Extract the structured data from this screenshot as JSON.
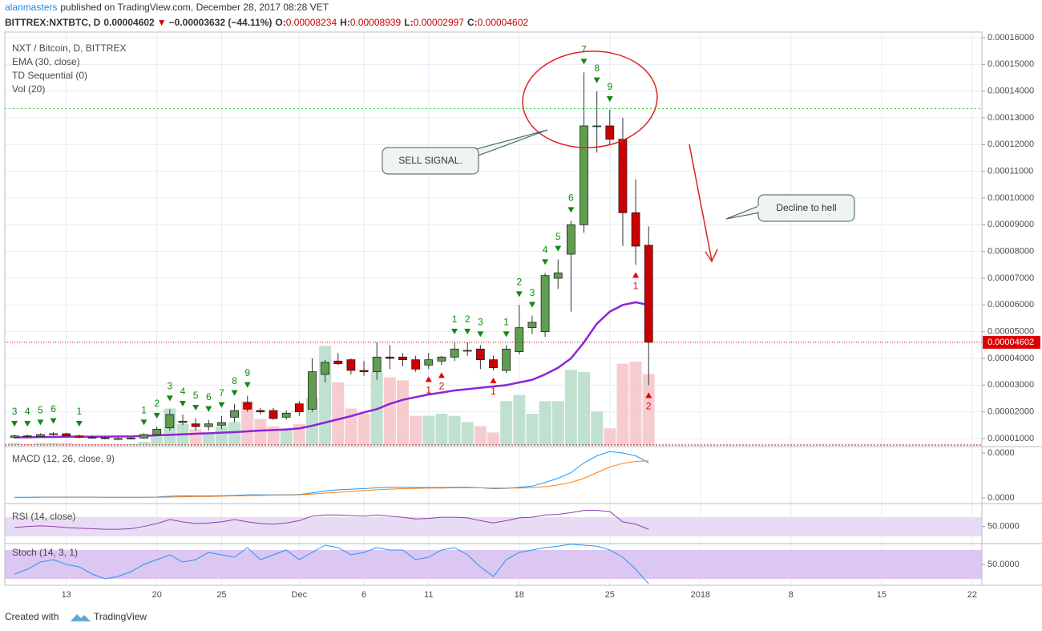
{
  "header": {
    "author": "alanmasters",
    "published": "published on TradingView.com, December 28, 2017 08:28 VET"
  },
  "quote": {
    "symbol": "BITTREX:NXTBTC, D",
    "price": "0.00004602",
    "arrow": "▼",
    "change": "−0.00003632 (−44.11%)",
    "o_label": "O:",
    "o": "0.00008234",
    "h_label": "H:",
    "h": "0.00008939",
    "l_label": "L:",
    "l": "0.00002997",
    "c_label": "C:",
    "c": "0.00004602"
  },
  "legend": [
    "NXT / Bitcoin, D, BITTREX",
    "EMA (30, close)",
    "TD Sequential (0)",
    "Vol (20)"
  ],
  "annotations": {
    "sell": "SELL SIGNAL.",
    "decline": "Decline to hell"
  },
  "footer": {
    "created": "Created with",
    "brand": "TradingView"
  },
  "chart_data": {
    "type": "candlestick",
    "xlim": [
      -0.75,
      74.75
    ],
    "xticks": [
      {
        "value": 4,
        "label": "13"
      },
      {
        "value": 11,
        "label": "20"
      },
      {
        "value": 16,
        "label": "25"
      },
      {
        "value": 22,
        "label": "Dec"
      },
      {
        "value": 27,
        "label": "6"
      },
      {
        "value": 32,
        "label": "11"
      },
      {
        "value": 39,
        "label": "18"
      },
      {
        "value": 46,
        "label": "25"
      },
      {
        "value": 53,
        "label": "2018"
      },
      {
        "value": 60,
        "label": "8"
      },
      {
        "value": 67,
        "label": "15"
      },
      {
        "value": 74,
        "label": "22"
      }
    ],
    "ylim": [
      7e-06,
      0.0001621
    ],
    "yticks": [
      {
        "value": 1e-05,
        "label": "0.00001000"
      },
      {
        "value": 2e-05,
        "label": "0.00002000"
      },
      {
        "value": 3e-05,
        "label": "0.00003000"
      },
      {
        "value": 4e-05,
        "label": "0.00004000"
      },
      {
        "value": 5e-05,
        "label": "0.00005000"
      },
      {
        "value": 6e-05,
        "label": "0.00006000"
      },
      {
        "value": 7e-05,
        "label": "0.00007000"
      },
      {
        "value": 8e-05,
        "label": "0.00008000"
      },
      {
        "value": 9e-05,
        "label": "0.00009000"
      },
      {
        "value": 0.0001,
        "label": "0.00010000"
      },
      {
        "value": 0.00011,
        "label": "0.00011000"
      },
      {
        "value": 0.00012,
        "label": "0.00012000"
      },
      {
        "value": 0.00013,
        "label": "0.00013000"
      },
      {
        "value": 0.00014,
        "label": "0.00014000"
      },
      {
        "value": 0.00015,
        "label": "0.00015000"
      },
      {
        "value": 0.00016,
        "label": "0.00016000"
      }
    ],
    "grid": true,
    "up_color": "#5f9e4e",
    "down_color": "#cc0000",
    "ohlc": [
      [
        1.05e-05,
        1.15e-05,
        1e-05,
        1.1e-05
      ],
      [
        1.1e-05,
        1.15e-05,
        1.05e-05,
        1.08e-05
      ],
      [
        1.08e-05,
        1.2e-05,
        1.05e-05,
        1.15e-05
      ],
      [
        1.15e-05,
        1.25e-05,
        1.1e-05,
        1.18e-05
      ],
      [
        1.18e-05,
        1.22e-05,
        1.08e-05,
        1.1e-05
      ],
      [
        1.1e-05,
        1.15e-05,
        1.02e-05,
        1.05e-05
      ],
      [
        1.05e-05,
        1.12e-05,
        1e-05,
        1.03e-05
      ],
      [
        1.03e-05,
        1.08e-05,
        9.7e-06,
        1e-05
      ],
      [
        1e-05,
        1.05e-05,
        9.6e-06,
        9.9e-06
      ],
      [
        9.9e-06,
        1.05e-05,
        9.6e-06,
        1.02e-05
      ],
      [
        1.02e-05,
        1.2e-05,
        1e-05,
        1.15e-05
      ],
      [
        1.15e-05,
        1.45e-05,
        1.1e-05,
        1.35e-05
      ],
      [
        1.4e-05,
        2.1e-05,
        1.3e-05,
        1.9e-05
      ],
      [
        1.6e-05,
        1.9e-05,
        1.5e-05,
        1.65e-05
      ],
      [
        1.55e-05,
        1.75e-05,
        1.3e-05,
        1.45e-05
      ],
      [
        1.45e-05,
        1.7e-05,
        1.3e-05,
        1.55e-05
      ],
      [
        1.5e-05,
        1.85e-05,
        1.35e-05,
        1.6e-05
      ],
      [
        1.8e-05,
        2.3e-05,
        1.6e-05,
        2.05e-05
      ],
      [
        2.35e-05,
        2.6e-05,
        2e-05,
        2.1e-05
      ],
      [
        2.05e-05,
        2.15e-05,
        1.9e-05,
        2e-05
      ],
      [
        2.05e-05,
        2.15e-05,
        1.7e-05,
        1.75e-05
      ],
      [
        1.8e-05,
        2.05e-05,
        1.7e-05,
        1.95e-05
      ],
      [
        2.3e-05,
        2.4e-05,
        1.85e-05,
        2e-05
      ],
      [
        2.1e-05,
        4e-05,
        2e-05,
        3.5e-05
      ],
      [
        3.4e-05,
        3.95e-05,
        3.1e-05,
        3.85e-05
      ],
      [
        3.9e-05,
        4.2e-05,
        3.75e-05,
        3.8e-05
      ],
      [
        3.95e-05,
        4e-05,
        3.4e-05,
        3.55e-05
      ],
      [
        3.55e-05,
        3.9e-05,
        3.35e-05,
        3.5e-05
      ],
      [
        3.5e-05,
        4.6e-05,
        3.2e-05,
        4.05e-05
      ],
      [
        4.05e-05,
        4.5e-05,
        3.6e-05,
        4e-05
      ],
      [
        4.05e-05,
        4.2e-05,
        3.7e-05,
        3.95e-05
      ],
      [
        3.95e-05,
        4.1e-05,
        3.5e-05,
        3.6e-05
      ],
      [
        3.75e-05,
        4.2e-05,
        3.6e-05,
        3.95e-05
      ],
      [
        3.9e-05,
        4.1e-05,
        3.75e-05,
        4.05e-05
      ],
      [
        4.05e-05,
        4.6e-05,
        3.9e-05,
        4.35e-05
      ],
      [
        4.3e-05,
        4.6e-05,
        4.1e-05,
        4.3e-05
      ],
      [
        4.35e-05,
        4.5e-05,
        3.6e-05,
        3.95e-05
      ],
      [
        3.95e-05,
        4.1e-05,
        3.55e-05,
        3.65e-05
      ],
      [
        3.55e-05,
        4.5e-05,
        3.45e-05,
        4.35e-05
      ],
      [
        4.25e-05,
        6e-05,
        4.15e-05,
        5.15e-05
      ],
      [
        5.15e-05,
        5.6e-05,
        4.9e-05,
        5.35e-05
      ],
      [
        5e-05,
        7.2e-05,
        4.8e-05,
        7.1e-05
      ],
      [
        7e-05,
        7.7e-05,
        6.6e-05,
        7.2e-05
      ],
      [
        7.9e-05,
        9.15e-05,
        5.75e-05,
        9e-05
      ],
      [
        9e-05,
        0.000147,
        8.7e-05,
        0.000127
      ],
      [
        0.000127,
        0.00014,
        0.000117,
        0.000127
      ],
      [
        0.000127,
        0.000133,
        0.00012,
        0.000122
      ],
      [
        0.000122,
        0.00013,
        8.2e-05,
        9.45e-05
      ],
      [
        9.45e-05,
        0.000107,
        7.5e-05,
        8.2e-05
      ],
      [
        8.234e-05,
        8.939e-05,
        2.997e-05,
        4.602e-05
      ]
    ],
    "volume": {
      "values": [
        2,
        1,
        2,
        2,
        2,
        1,
        1,
        1,
        1,
        1,
        3,
        8,
        35,
        20,
        15,
        12,
        18,
        22,
        42,
        25,
        18,
        15,
        20,
        45,
        95,
        60,
        35,
        30,
        70,
        65,
        62,
        28,
        28,
        30,
        28,
        22,
        18,
        12,
        42,
        48,
        30,
        42,
        42,
        72,
        70,
        32,
        16,
        78,
        80,
        68
      ],
      "ylim": [
        0,
        100
      ],
      "up_color": "#b5dcc8",
      "down_color": "#f6c3c8"
    },
    "ema": {
      "color": "#8e24d8",
      "values": [
        1.05e-05,
        1.05e-05,
        1.06e-05,
        1.06e-05,
        1.07e-05,
        1.07e-05,
        1.07e-05,
        1.07e-05,
        1.08e-05,
        1.08e-05,
        1.1e-05,
        1.12e-05,
        1.14e-05,
        1.16e-05,
        1.18e-05,
        1.2e-05,
        1.22e-05,
        1.24e-05,
        1.27e-05,
        1.3e-05,
        1.32e-05,
        1.34e-05,
        1.38e-05,
        1.48e-05,
        1.6e-05,
        1.72e-05,
        1.84e-05,
        1.98e-05,
        2.1e-05,
        2.3e-05,
        2.45e-05,
        2.55e-05,
        2.65e-05,
        2.72e-05,
        2.8e-05,
        2.85e-05,
        2.9e-05,
        2.95e-05,
        3e-05,
        3.1e-05,
        3.2e-05,
        3.4e-05,
        3.65e-05,
        4e-05,
        4.6e-05,
        5.3e-05,
        5.75e-05,
        6e-05,
        6.1e-05,
        6e-05
      ]
    },
    "resistance": {
      "value": 0.0001335,
      "color": "#22c222"
    },
    "td_up_color": "#118811",
    "td_down_color": "#e00000",
    "td_labels": [
      {
        "index": 0,
        "text": "3",
        "dir": "up"
      },
      {
        "index": 1,
        "text": "4",
        "dir": "up"
      },
      {
        "index": 2,
        "text": "5",
        "dir": "up"
      },
      {
        "index": 3,
        "text": "6",
        "dir": "up"
      },
      {
        "index": 5,
        "text": "1",
        "dir": "up"
      },
      {
        "index": 10,
        "text": "1",
        "dir": "up"
      },
      {
        "index": 11,
        "text": "2",
        "dir": "up"
      },
      {
        "index": 12,
        "text": "3",
        "dir": "up"
      },
      {
        "index": 13,
        "text": "4",
        "dir": "up"
      },
      {
        "index": 14,
        "text": "5",
        "dir": "up"
      },
      {
        "index": 15,
        "text": "6",
        "dir": "up"
      },
      {
        "index": 16,
        "text": "7",
        "dir": "up"
      },
      {
        "index": 17,
        "text": "8",
        "dir": "up"
      },
      {
        "index": 18,
        "text": "9",
        "dir": "up"
      },
      {
        "index": 32,
        "text": "1",
        "dir": "down"
      },
      {
        "index": 33,
        "text": "2",
        "dir": "down"
      },
      {
        "index": 34,
        "text": "1",
        "dir": "up"
      },
      {
        "index": 35,
        "text": "2",
        "dir": "up"
      },
      {
        "index": 36,
        "text": "3",
        "dir": "up"
      },
      {
        "index": 37,
        "text": "1",
        "dir": "down"
      },
      {
        "index": 38,
        "text": "1",
        "dir": "up"
      },
      {
        "index": 39,
        "text": "2",
        "dir": "up"
      },
      {
        "index": 40,
        "text": "3",
        "dir": "up"
      },
      {
        "index": 41,
        "text": "4",
        "dir": "up"
      },
      {
        "index": 42,
        "text": "5",
        "dir": "up"
      },
      {
        "index": 43,
        "text": "6",
        "dir": "up"
      },
      {
        "index": 44,
        "text": "7",
        "dir": "up"
      },
      {
        "index": 45,
        "text": "8",
        "dir": "up"
      },
      {
        "index": 46,
        "text": "9",
        "dir": "up"
      },
      {
        "index": 48,
        "text": "1",
        "dir": "down"
      },
      {
        "index": 49,
        "text": "2",
        "dir": "down"
      }
    ],
    "macd": {
      "label": "MACD (12, 26, close, 9)",
      "ylim": [
        -2e-06,
        1.8e-05
      ],
      "yticks": [
        {
          "value": 0,
          "label": "0.0000"
        },
        {
          "value": 1.6e-05,
          "label": "0.0000"
        }
      ],
      "series": [
        {
          "color": "#2196f3",
          "values": [
            2e-07,
            2e-07,
            3e-07,
            3e-07,
            3e-07,
            3e-07,
            3e-07,
            2e-07,
            2e-07,
            2e-07,
            2e-07,
            3e-07,
            6e-07,
            7e-07,
            7e-07,
            7e-07,
            8e-07,
            9e-07,
            1.1e-06,
            1.1e-06,
            1.1e-06,
            1.1e-06,
            1.2e-06,
            1.8e-06,
            2.5e-06,
            2.9e-06,
            3.1e-06,
            3.3e-06,
            3.6e-06,
            3.8e-06,
            3.8e-06,
            3.7e-06,
            3.7e-06,
            3.7e-06,
            3.8e-06,
            3.8e-06,
            3.6e-06,
            3.3e-06,
            3.4e-06,
            3.8e-06,
            4.2e-06,
            5.5e-06,
            7e-06,
            9e-06,
            1.25e-05,
            1.5e-05,
            1.65e-05,
            1.6e-05,
            1.5e-05,
            1.25e-05
          ]
        },
        {
          "color": "#ff7f0e",
          "values": [
            1e-07,
            1e-07,
            2e-07,
            2e-07,
            2e-07,
            2e-07,
            2e-07,
            2e-07,
            2e-07,
            2e-07,
            2e-07,
            2e-07,
            3e-07,
            4e-07,
            5e-07,
            5e-07,
            6e-07,
            7e-07,
            8e-07,
            9e-07,
            1e-06,
            1e-06,
            1.1e-06,
            1.4e-06,
            1.7e-06,
            2e-06,
            2.3e-06,
            2.6e-06,
            2.9e-06,
            3.1e-06,
            3.3e-06,
            3.4e-06,
            3.5e-06,
            3.5e-06,
            3.6e-06,
            3.6e-06,
            3.6e-06,
            3.5e-06,
            3.5e-06,
            3.5e-06,
            3.7e-06,
            4e-06,
            4.6e-06,
            5.5e-06,
            7e-06,
            9e-06,
            1.1e-05,
            1.23e-05,
            1.3e-05,
            1.32e-05
          ]
        }
      ]
    },
    "rsi": {
      "label": "RSI (14, close)",
      "ylim": [
        20,
        90
      ],
      "yticks": [
        {
          "value": 50,
          "label": "50.0000"
        }
      ],
      "color": "#8e3fb0",
      "values": [
        48,
        50,
        51,
        50,
        48,
        47,
        46,
        45,
        45,
        46,
        50,
        55,
        62,
        58,
        55,
        56,
        58,
        62,
        58,
        55,
        54,
        56,
        60,
        68,
        70,
        70,
        69,
        68,
        70,
        68,
        66,
        63,
        64,
        66,
        66,
        65,
        60,
        56,
        60,
        65,
        66,
        70,
        71,
        74,
        78,
        78,
        76,
        58,
        54,
        45
      ]
    },
    "stoch": {
      "label": "Stoch (14, 3, 1)",
      "ylim": [
        10,
        90
      ],
      "yticks": [
        {
          "value": 50,
          "label": "50.0000"
        }
      ],
      "color": "#2196f3",
      "values": [
        30,
        40,
        55,
        60,
        50,
        45,
        30,
        20,
        25,
        35,
        50,
        60,
        70,
        55,
        60,
        75,
        70,
        65,
        85,
        60,
        70,
        80,
        60,
        75,
        90,
        85,
        70,
        75,
        85,
        80,
        80,
        60,
        65,
        80,
        85,
        70,
        45,
        25,
        60,
        75,
        80,
        85,
        88,
        92,
        90,
        88,
        80,
        65,
        40,
        10
      ]
    }
  }
}
